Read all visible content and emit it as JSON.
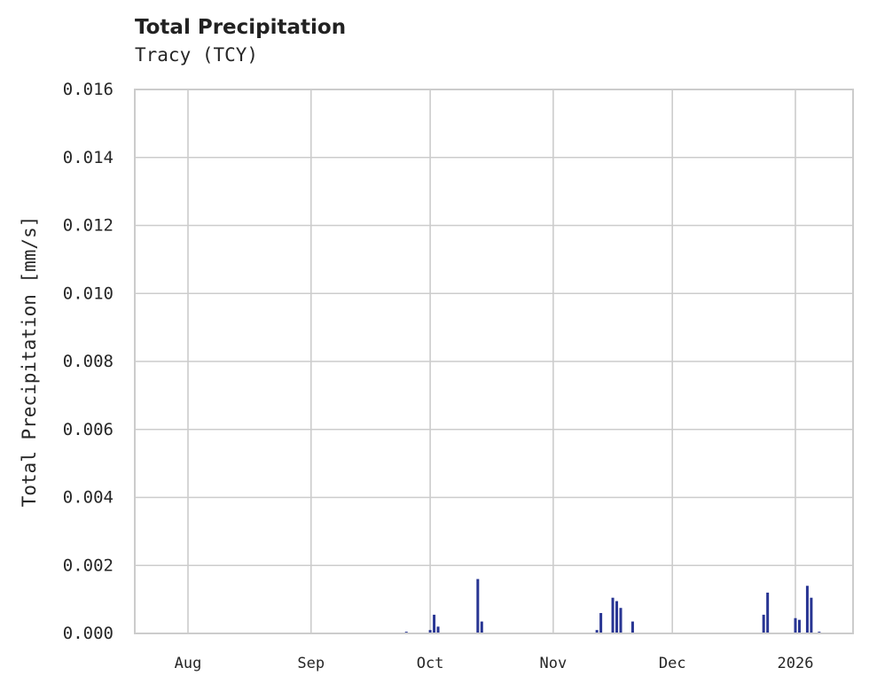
{
  "header": {
    "title": "Total Precipitation",
    "subtitle": "Tracy (TCY)"
  },
  "colors": {
    "series": "#283593",
    "grid": "#cccccc",
    "axis": "#cccccc",
    "text": "#262626"
  },
  "chart_data": {
    "type": "bar",
    "title": "Total Precipitation",
    "subtitle": "Tracy (TCY)",
    "xlabel": "",
    "ylabel": "Total Precipitation [mm/s]",
    "ylim": [
      0,
      0.016
    ],
    "yticks": [
      "0.000",
      "0.002",
      "0.004",
      "0.006",
      "0.008",
      "0.010",
      "0.012",
      "0.014",
      "0.016"
    ],
    "xticks": [
      "Aug",
      "Sep",
      "Oct",
      "Nov",
      "Dec",
      "2026"
    ],
    "grid": true,
    "legend": null,
    "series": [
      {
        "name": "Total Precipitation",
        "points": [
          {
            "x": "2025-09-25",
            "y": 5e-05
          },
          {
            "x": "2025-10-01",
            "y": 0.0001
          },
          {
            "x": "2025-10-02",
            "y": 0.00055
          },
          {
            "x": "2025-10-03",
            "y": 0.0002
          },
          {
            "x": "2025-10-13",
            "y": 0.0016
          },
          {
            "x": "2025-10-14",
            "y": 0.00035
          },
          {
            "x": "2025-11-12",
            "y": 0.0001
          },
          {
            "x": "2025-11-13",
            "y": 0.0006
          },
          {
            "x": "2025-11-16",
            "y": 0.00105
          },
          {
            "x": "2025-11-17",
            "y": 0.00095
          },
          {
            "x": "2025-11-18",
            "y": 0.00075
          },
          {
            "x": "2025-11-21",
            "y": 0.00035
          },
          {
            "x": "2025-12-24",
            "y": 0.00055
          },
          {
            "x": "2025-12-25",
            "y": 0.0012
          },
          {
            "x": "2026-01-01",
            "y": 0.00045
          },
          {
            "x": "2026-01-02",
            "y": 0.0004
          },
          {
            "x": "2026-01-04",
            "y": 0.0014
          },
          {
            "x": "2026-01-05",
            "y": 0.00105
          },
          {
            "x": "2026-01-07",
            "y": 5e-05
          }
        ]
      }
    ]
  }
}
